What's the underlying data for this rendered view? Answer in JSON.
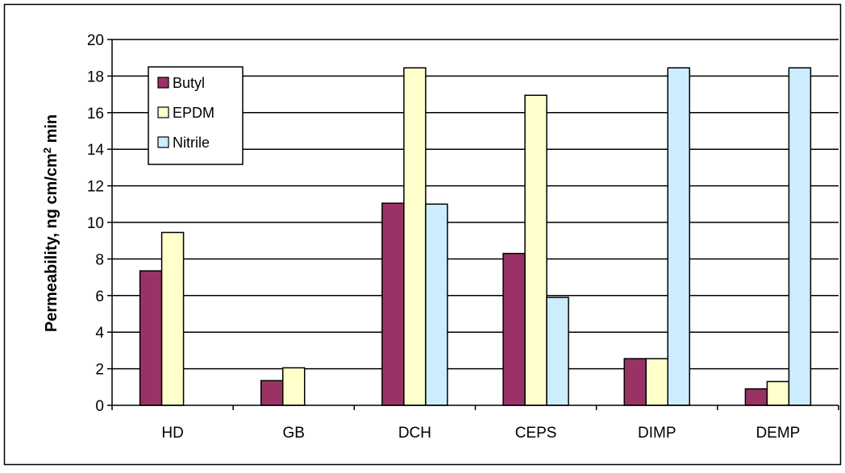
{
  "chart_data": {
    "type": "bar",
    "title": "",
    "xlabel": "",
    "ylabel": {
      "main": "Permeability, ng cm/cm",
      "superscript": "2",
      "suffix": " min"
    },
    "ylim": [
      0,
      20
    ],
    "yticks": [
      0,
      2,
      4,
      6,
      8,
      10,
      12,
      14,
      16,
      18,
      20
    ],
    "grid": true,
    "legend_position": "top-left",
    "categories": [
      "HD",
      "GB",
      "DCH",
      "CEPS",
      "DIMP",
      "DEMP"
    ],
    "series": [
      {
        "name": "Butyl",
        "color": "#993366",
        "values": [
          7.35,
          1.35,
          11.05,
          8.3,
          2.55,
          0.9
        ]
      },
      {
        "name": "EPDM",
        "color": "#FFFFCC",
        "values": [
          9.45,
          2.05,
          18.45,
          16.95,
          2.55,
          1.3
        ]
      },
      {
        "name": "Nitrile",
        "color": "#CCECFF",
        "values": [
          null,
          null,
          11.0,
          5.9,
          18.45,
          18.45
        ]
      }
    ]
  }
}
